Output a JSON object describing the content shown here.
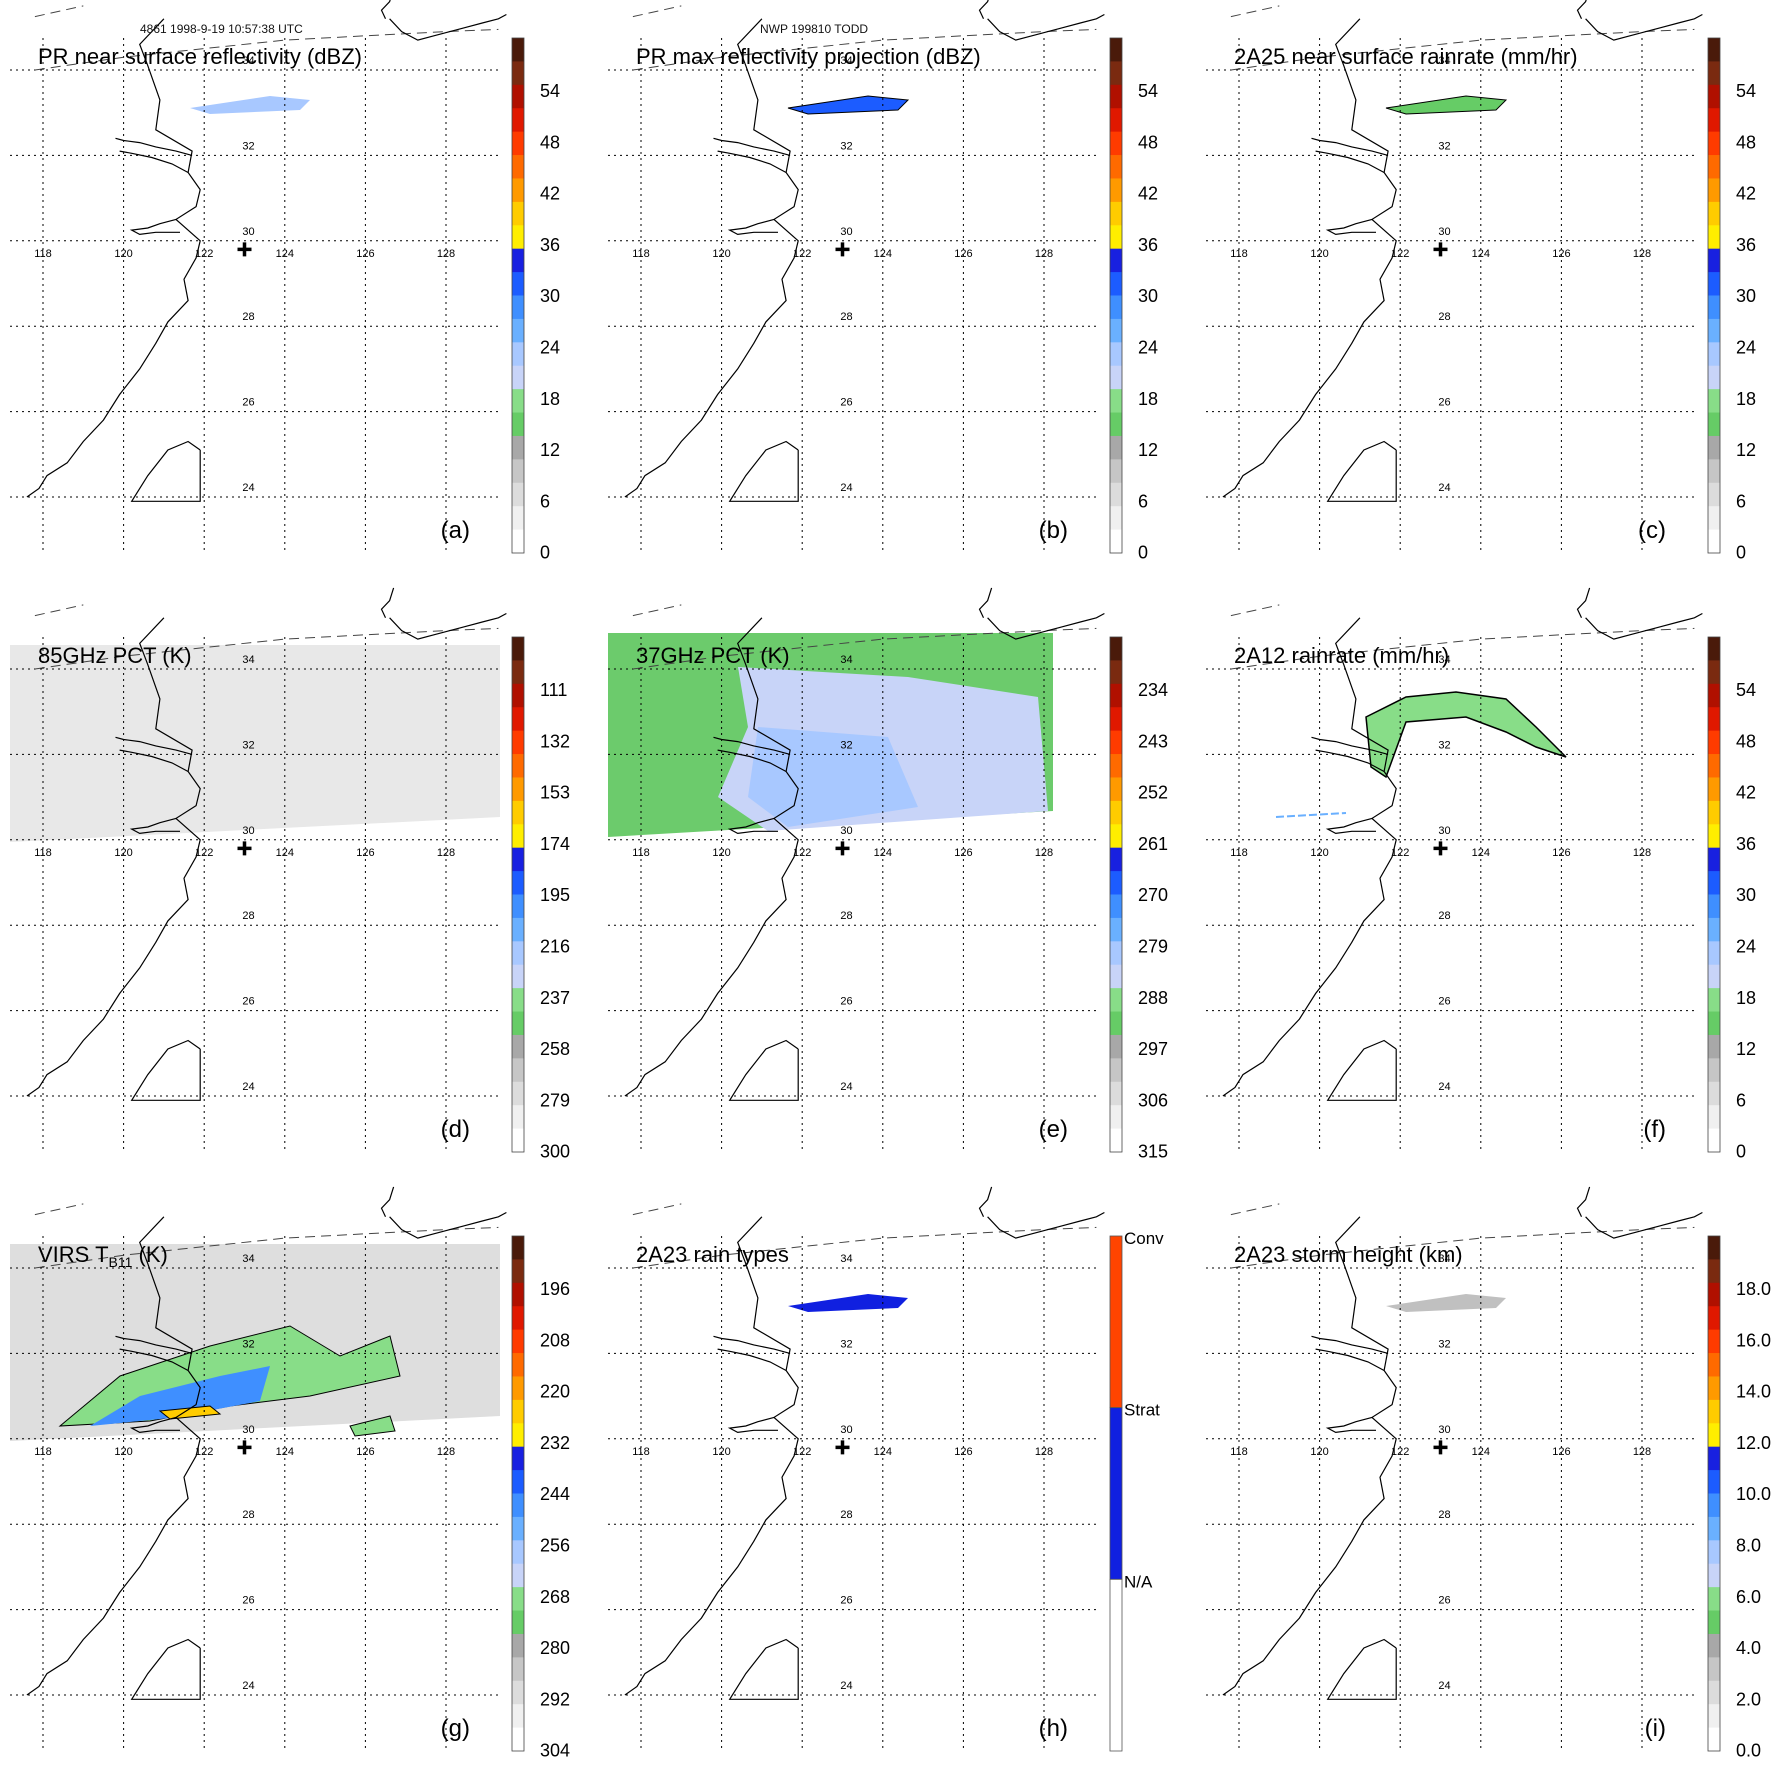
{
  "header": {
    "orbit_time": "4861 1998-9-19 10:57:38 UTC",
    "model_run": "NWP 199810 TODD"
  },
  "map": {
    "lon_labels": [
      "118",
      "120",
      "122",
      "124",
      "126",
      "128"
    ],
    "lat_labels": [
      "34",
      "32",
      "30",
      "28",
      "26",
      "24"
    ]
  },
  "panels": [
    {
      "id": "a",
      "title": "PR near surface reflectivity (dBZ)",
      "letter": "(a)",
      "ticks": [
        "54",
        "48",
        "42",
        "36",
        "30",
        "24",
        "18",
        "12",
        "6",
        "0"
      ]
    },
    {
      "id": "b",
      "title": "PR max reflectivity projection (dBZ)",
      "letter": "(b)",
      "ticks": [
        "54",
        "48",
        "42",
        "36",
        "30",
        "24",
        "18",
        "12",
        "6",
        "0"
      ]
    },
    {
      "id": "c",
      "title": "2A25 near surface rainrate (mm/hr)",
      "letter": "(c)",
      "ticks": [
        "54",
        "48",
        "42",
        "36",
        "30",
        "24",
        "18",
        "12",
        "6",
        "0"
      ]
    },
    {
      "id": "d",
      "title": "85GHz PCT (K)",
      "letter": "(d)",
      "ticks": [
        "111",
        "132",
        "153",
        "174",
        "195",
        "216",
        "237",
        "258",
        "279",
        "300"
      ]
    },
    {
      "id": "e",
      "title": "37GHz PCT (K)",
      "letter": "(e)",
      "ticks": [
        "234",
        "243",
        "252",
        "261",
        "270",
        "279",
        "288",
        "297",
        "306",
        "315"
      ]
    },
    {
      "id": "f",
      "title": "2A12 rainrate (mm/hr)",
      "letter": "(f)",
      "ticks": [
        "54",
        "48",
        "42",
        "36",
        "30",
        "24",
        "18",
        "12",
        "6",
        "0"
      ]
    },
    {
      "id": "g",
      "title_main": "VIRS T",
      "title_sub": "B11",
      "title_tail": " (K)",
      "letter": "(g)",
      "ticks": [
        "196",
        "208",
        "220",
        "232",
        "244",
        "256",
        "268",
        "280",
        "292",
        "304"
      ]
    },
    {
      "id": "h",
      "title": "2A23 rain types",
      "letter": "(h)",
      "ticks": [
        "Conv",
        "Strat",
        "N/A"
      ]
    },
    {
      "id": "i",
      "title": "2A23 storm height (km)",
      "letter": "(i)",
      "ticks": [
        "18.0",
        "16.0",
        "14.0",
        "12.0",
        "10.0",
        "8.0",
        "6.0",
        "4.0",
        "2.0",
        "0.0"
      ]
    }
  ],
  "colors": {
    "colorbar": [
      "#ffffff",
      "#f0f0f0",
      "#dcdcdc",
      "#c6c6c6",
      "#a8a8a8",
      "#66cc66",
      "#88dd88",
      "#c8d4f8",
      "#a8c8ff",
      "#6ab0ff",
      "#3f8fff",
      "#1c5cff",
      "#1820e0",
      "#ffee00",
      "#ffcc00",
      "#ff9a00",
      "#ff6a00",
      "#ff3b00",
      "#e01800",
      "#b01000",
      "#7a2a10",
      "#4a1a0a"
    ],
    "raintype": [
      "#ffffff",
      "#1020e0",
      "#ff4400"
    ],
    "coast": "#000000",
    "grid": "#000000"
  }
}
